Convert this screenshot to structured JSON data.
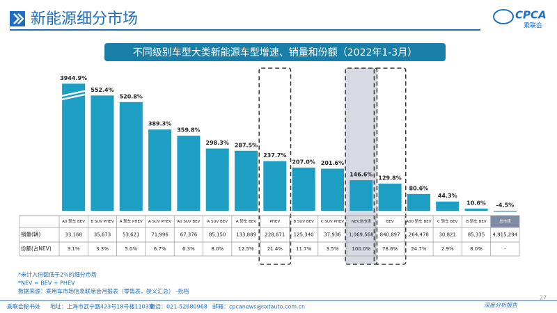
{
  "header": {
    "title": "新能源细分市场",
    "logo": "CPCA",
    "logo_sub": "乘联会"
  },
  "chart_data": {
    "type": "bar",
    "title": "不同级别车型大类新能源车型增速、销量和份额（2022年1-3月）",
    "categories": [
      "A0 轿车 BEV",
      "B SUV PHEV",
      "A 轿车 PHEV",
      "A SUV PHEV",
      "A0 SUV BEV",
      "A SUV BEV",
      "A 轿车 BEV",
      "PHEV",
      "B SUV BEV",
      "C SUV PHEV",
      "NEV总市场",
      "BEV",
      "A00 轿车 BEV",
      "C 轿车 BEV",
      "B 轿车 BEV",
      "总市场"
    ],
    "values": [
      3944.9,
      552.4,
      520.8,
      389.3,
      359.8,
      298.3,
      287.5,
      237.7,
      207.0,
      201.6,
      146.6,
      129.8,
      80.6,
      44.3,
      10.6,
      -4.5
    ],
    "value_labels": [
      "3944.9%",
      "552.4%",
      "520.8%",
      "389.3%",
      "359.8%",
      "298.3%",
      "287.5%",
      "237.7%",
      "207.0%",
      "201.6%",
      "146.6%",
      "129.8%",
      "80.6%",
      "44.3%",
      "10.6%",
      "-4.5%"
    ],
    "color": "#1d9fc3",
    "highlighted_categories": [
      "PHEV",
      "NEV总市场",
      "BEV"
    ]
  },
  "table": {
    "row_headers": [
      "销量(辆)",
      "份额(占NEV)"
    ],
    "rows": [
      [
        "33,168",
        "35,673",
        "53,621",
        "71,996",
        "67,376",
        "85,150",
        "133,889",
        "228,671",
        "125,340",
        "37,936",
        "1,069,568",
        "840,897",
        "264,478",
        "30,821",
        "85,335",
        "4,915,294"
      ],
      [
        "3.1%",
        "3.3%",
        "5.0%",
        "6.7%",
        "6.3%",
        "8.0%",
        "12.5%",
        "21.4%",
        "11.7%",
        "3.5%",
        "100.0%",
        "78.6%",
        "24.7%",
        "2.9%",
        "8.0%",
        "-"
      ]
    ]
  },
  "notes": [
    "*未计入份额低于2%的细分市场",
    "*NEV = BEV + PHEV",
    "数据来源：乘用车市场信息联席会月报表（零售表，狭义汇总） -批档"
  ],
  "footer": {
    "org": "乘联会秘书处",
    "address": "地址：上海市武宁路423号18号楼1103室",
    "phone": "电话：021-52680968",
    "email": "邮箱：cpcanews@sxtauto.com.cn",
    "tagline": "深度分析报告",
    "page": "27"
  }
}
